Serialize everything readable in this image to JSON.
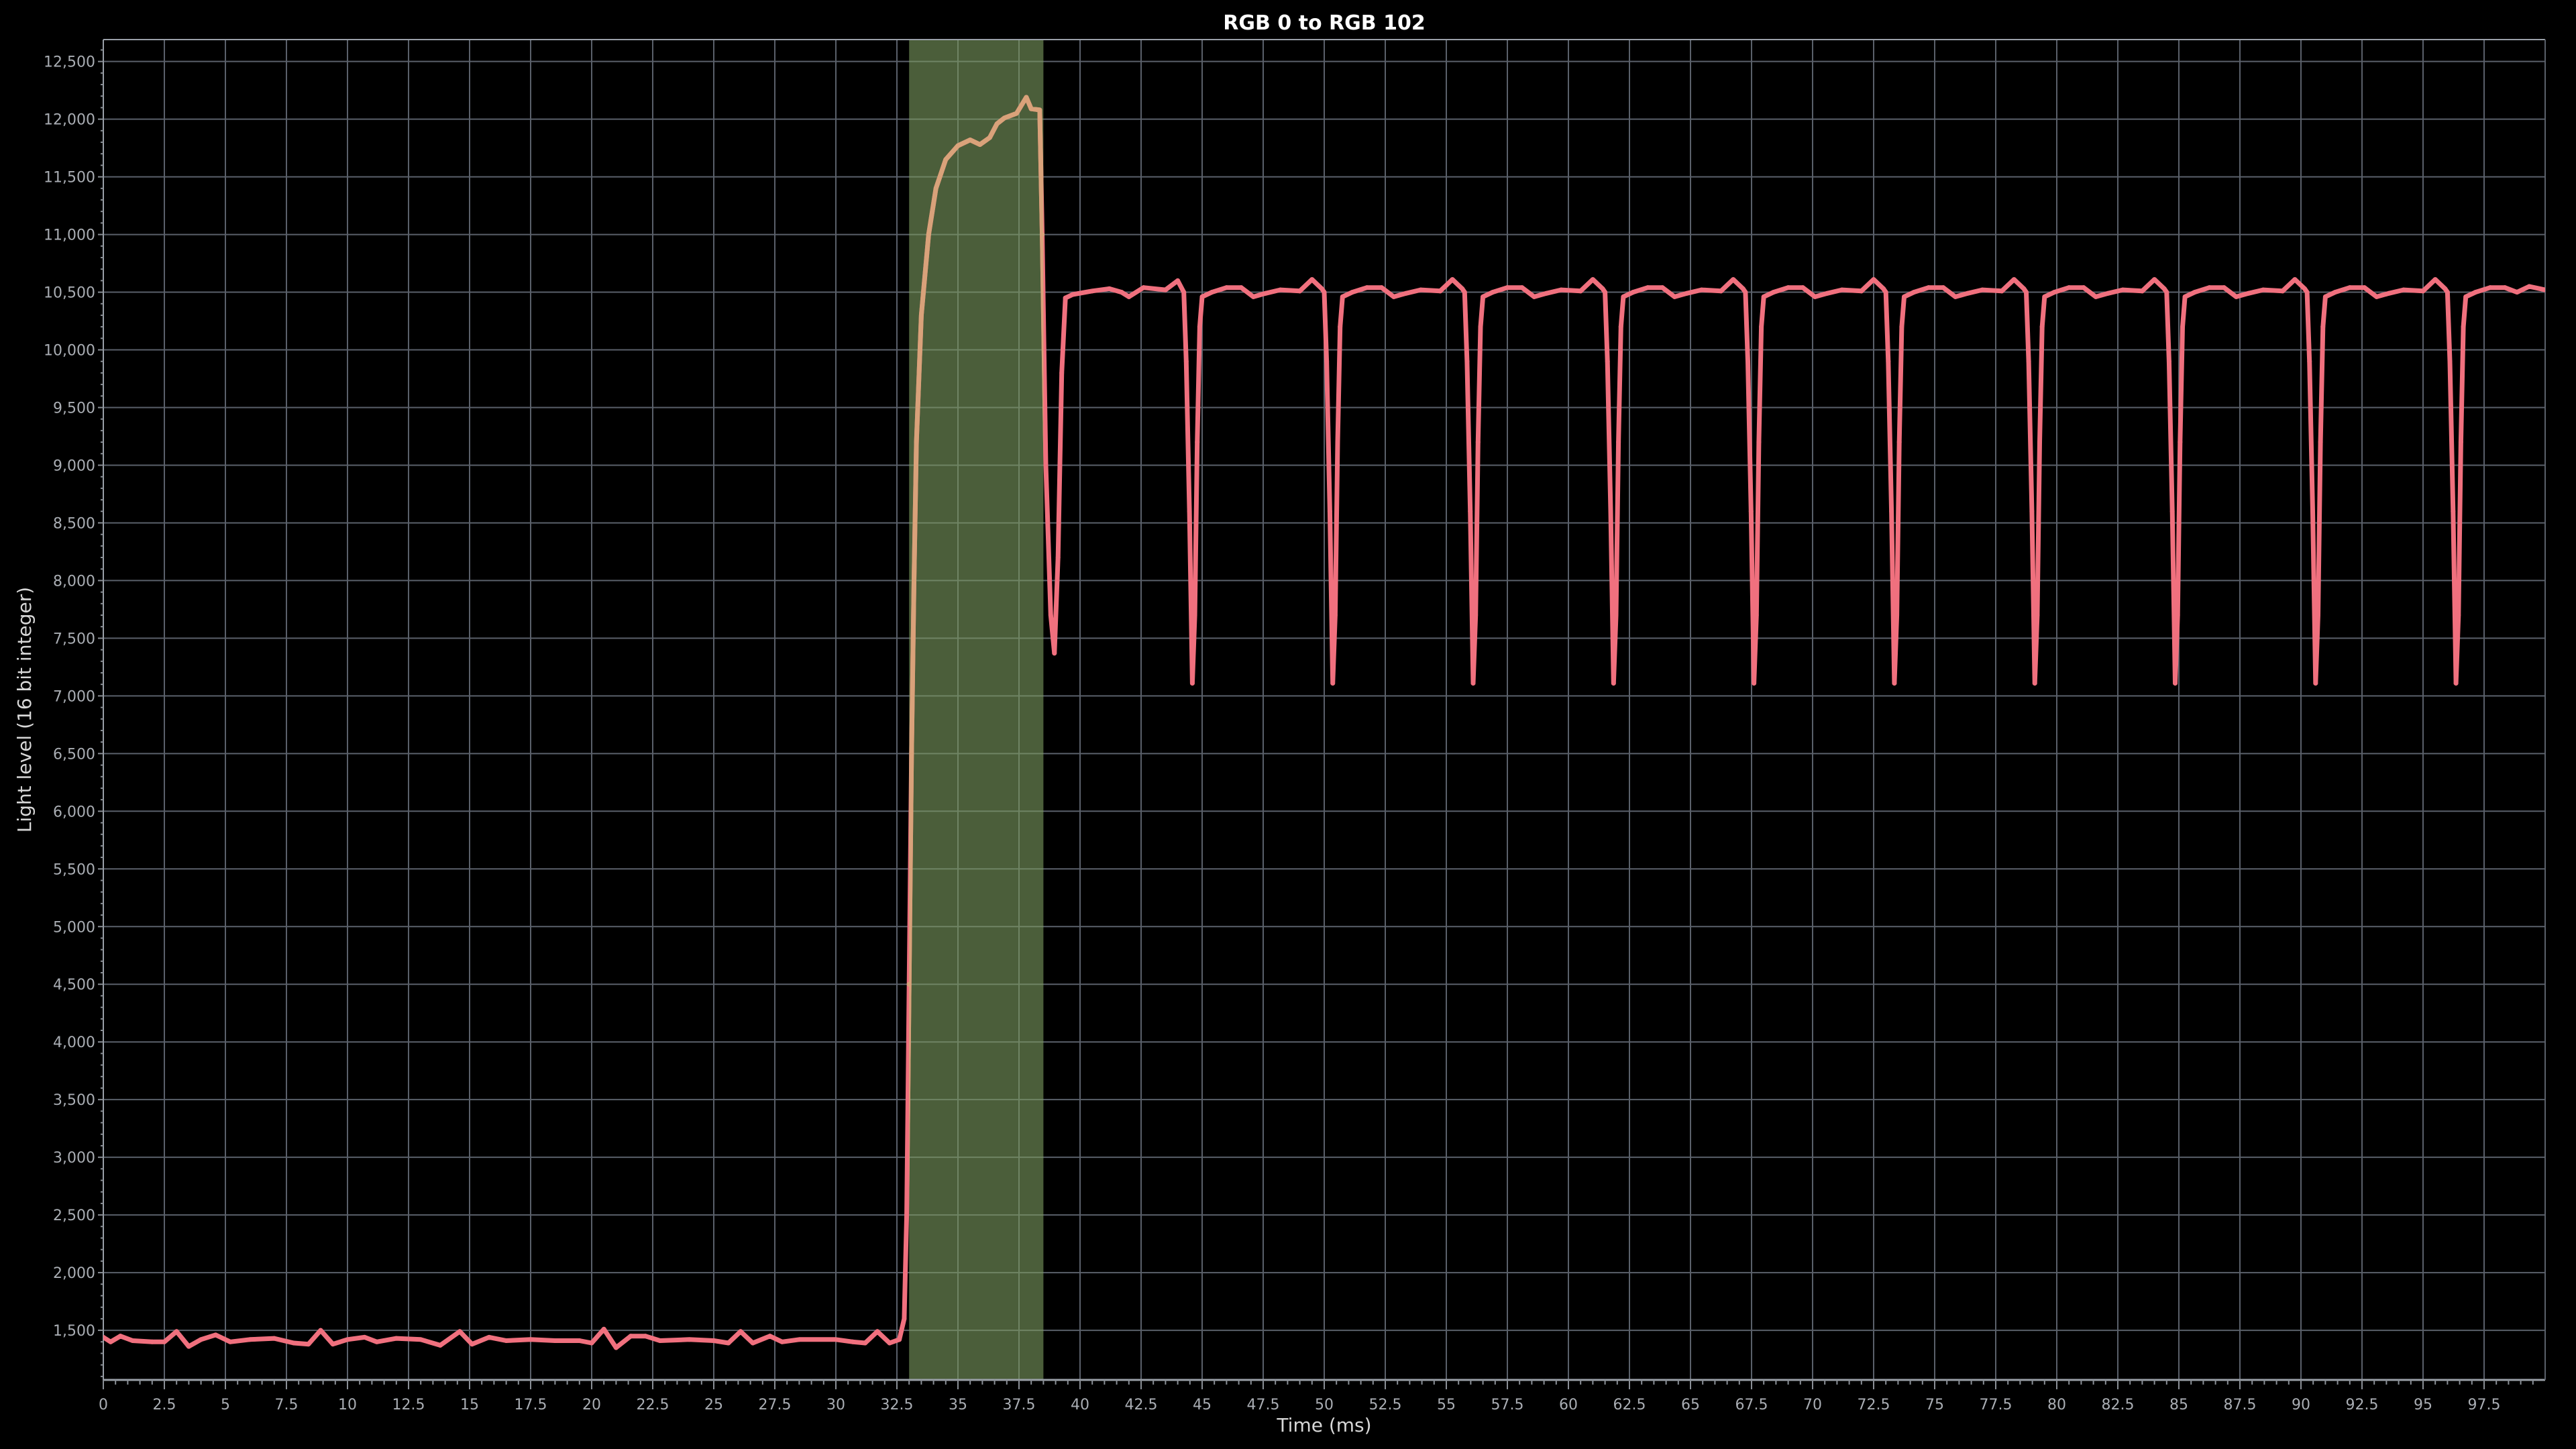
{
  "chart_data": {
    "type": "line",
    "title": "RGB 0 to RGB 102",
    "xlabel": "Time (ms)",
    "ylabel": "Light level (16 bit integer)",
    "xlim": [
      0,
      100
    ],
    "ylim": [
      1070,
      12690
    ],
    "grid": true,
    "x_ticks": [
      0,
      2.5,
      5,
      7.5,
      10,
      12.5,
      15,
      17.5,
      20,
      22.5,
      25,
      27.5,
      30,
      32.5,
      35,
      37.5,
      40,
      42.5,
      45,
      47.5,
      50,
      52.5,
      55,
      57.5,
      60,
      62.5,
      65,
      67.5,
      70,
      72.5,
      75,
      77.5,
      80,
      82.5,
      85,
      87.5,
      90,
      92.5,
      95,
      97.5
    ],
    "x_tick_labels": [
      "0",
      "2.5",
      "5",
      "7.5",
      "10",
      "12.5",
      "15",
      "17.5",
      "20",
      "22.5",
      "25",
      "27.5",
      "30",
      "32.5",
      "35",
      "37.5",
      "40",
      "42.5",
      "45",
      "47.5",
      "50",
      "52.5",
      "55",
      "57.5",
      "60",
      "62.5",
      "65",
      "67.5",
      "70",
      "72.5",
      "75",
      "77.5",
      "80",
      "82.5",
      "85",
      "87.5",
      "90",
      "92.5",
      "95",
      "97.5"
    ],
    "y_ticks": [
      1500,
      2000,
      2500,
      3000,
      3500,
      4000,
      4500,
      5000,
      5500,
      6000,
      6500,
      7000,
      7500,
      8000,
      8500,
      9000,
      9500,
      10000,
      10500,
      11000,
      11500,
      12000,
      12500
    ],
    "y_tick_labels": [
      "1,500",
      "2,000",
      "2,500",
      "3,000",
      "3,500",
      "4,000",
      "4,500",
      "5,000",
      "5,500",
      "6,000",
      "6,500",
      "7,000",
      "7,500",
      "8,000",
      "8,500",
      "9,000",
      "9,500",
      "10,000",
      "10,500",
      "11,000",
      "11,500",
      "12,000",
      "12,500"
    ],
    "highlight_range": [
      33.0,
      38.5
    ],
    "colors": {
      "line": "#f0707e",
      "line_in_highlight": "#d9a27a",
      "highlight": "#4b5e3a",
      "grid": "#5a606a",
      "background": "#000000"
    },
    "series": [
      {
        "points": [
          [
            0,
            1440
          ],
          [
            0.3,
            1400
          ],
          [
            0.7,
            1450
          ],
          [
            1.2,
            1410
          ],
          [
            2,
            1400
          ],
          [
            2.5,
            1400
          ],
          [
            3.0,
            1490
          ],
          [
            3.5,
            1360
          ],
          [
            4.0,
            1420
          ],
          [
            4.6,
            1460
          ],
          [
            5.2,
            1400
          ],
          [
            6,
            1420
          ],
          [
            7,
            1430
          ],
          [
            7.8,
            1390
          ],
          [
            8.4,
            1380
          ],
          [
            8.9,
            1500
          ],
          [
            9.4,
            1380
          ],
          [
            10,
            1420
          ],
          [
            10.7,
            1440
          ],
          [
            11.2,
            1400
          ],
          [
            12,
            1430
          ],
          [
            13,
            1420
          ],
          [
            13.8,
            1370
          ],
          [
            14.6,
            1490
          ],
          [
            15.1,
            1380
          ],
          [
            15.8,
            1440
          ],
          [
            16.5,
            1410
          ],
          [
            17.5,
            1420
          ],
          [
            18.5,
            1410
          ],
          [
            19.5,
            1410
          ],
          [
            20.0,
            1390
          ],
          [
            20.5,
            1510
          ],
          [
            21.0,
            1350
          ],
          [
            21.6,
            1450
          ],
          [
            22.2,
            1450
          ],
          [
            22.8,
            1410
          ],
          [
            24,
            1420
          ],
          [
            25,
            1410
          ],
          [
            25.6,
            1390
          ],
          [
            26.1,
            1490
          ],
          [
            26.6,
            1390
          ],
          [
            27.3,
            1450
          ],
          [
            27.8,
            1400
          ],
          [
            28.5,
            1420
          ],
          [
            30,
            1420
          ],
          [
            30.7,
            1400
          ],
          [
            31.2,
            1390
          ],
          [
            31.7,
            1490
          ],
          [
            32.2,
            1390
          ],
          [
            32.6,
            1420
          ],
          [
            32.8,
            1600
          ],
          [
            32.9,
            2500
          ],
          [
            33.0,
            4500
          ],
          [
            33.1,
            6500
          ],
          [
            33.2,
            8000
          ],
          [
            33.3,
            9200
          ],
          [
            33.5,
            10300
          ],
          [
            33.8,
            11000
          ],
          [
            34.1,
            11400
          ],
          [
            34.5,
            11650
          ],
          [
            35,
            11770
          ],
          [
            35.5,
            11820
          ],
          [
            35.9,
            11780
          ],
          [
            36.3,
            11840
          ],
          [
            36.6,
            11960
          ],
          [
            36.9,
            12010
          ],
          [
            37.4,
            12050
          ],
          [
            37.8,
            12190
          ],
          [
            38.0,
            12090
          ],
          [
            38.35,
            12080
          ],
          [
            38.45,
            11000
          ],
          [
            38.6,
            9000
          ],
          [
            38.8,
            7700
          ],
          [
            38.95,
            7370
          ],
          [
            39.1,
            8200
          ],
          [
            39.25,
            9800
          ],
          [
            39.4,
            10450
          ],
          [
            39.7,
            10480
          ],
          [
            40.5,
            10510
          ],
          [
            41.2,
            10530
          ],
          [
            41.7,
            10500
          ],
          [
            42.0,
            10460
          ],
          [
            42.6,
            10540
          ],
          [
            43.5,
            10520
          ],
          [
            44.0,
            10600
          ],
          [
            44.25,
            10500
          ],
          [
            44.35,
            9900
          ],
          [
            44.48,
            8600
          ],
          [
            44.6,
            7110
          ],
          [
            44.7,
            7700
          ],
          [
            44.8,
            9200
          ],
          [
            44.9,
            10200
          ],
          [
            45.0,
            10460
          ],
          [
            45.4,
            10500
          ],
          [
            46.0,
            10540
          ],
          [
            46.6,
            10540
          ],
          [
            47.1,
            10460
          ],
          [
            47.6,
            10490
          ],
          [
            48.2,
            10520
          ],
          [
            49.0,
            10510
          ],
          [
            49.5,
            10610
          ],
          [
            49.9,
            10530
          ],
          [
            50.0,
            10500
          ],
          [
            50.1,
            9900
          ],
          [
            50.23,
            8600
          ],
          [
            50.35,
            7110
          ],
          [
            50.45,
            7700
          ],
          [
            50.55,
            9200
          ],
          [
            50.65,
            10200
          ],
          [
            50.75,
            10460
          ],
          [
            51.15,
            10500
          ],
          [
            51.75,
            10540
          ],
          [
            52.35,
            10540
          ],
          [
            52.85,
            10460
          ],
          [
            53.35,
            10490
          ],
          [
            53.95,
            10520
          ],
          [
            54.75,
            10510
          ],
          [
            55.25,
            10610
          ],
          [
            55.65,
            10530
          ],
          [
            55.75,
            10500
          ],
          [
            55.85,
            9900
          ],
          [
            55.98,
            8600
          ],
          [
            56.1,
            7110
          ],
          [
            56.2,
            7700
          ],
          [
            56.3,
            9200
          ],
          [
            56.4,
            10200
          ],
          [
            56.5,
            10460
          ],
          [
            56.9,
            10500
          ],
          [
            57.5,
            10540
          ],
          [
            58.1,
            10540
          ],
          [
            58.6,
            10460
          ],
          [
            59.1,
            10490
          ],
          [
            59.7,
            10520
          ],
          [
            60.5,
            10510
          ],
          [
            61.0,
            10610
          ],
          [
            61.4,
            10530
          ],
          [
            61.5,
            10500
          ],
          [
            61.6,
            9900
          ],
          [
            61.73,
            8600
          ],
          [
            61.85,
            7110
          ],
          [
            61.95,
            7700
          ],
          [
            62.05,
            9200
          ],
          [
            62.15,
            10200
          ],
          [
            62.25,
            10460
          ],
          [
            62.65,
            10500
          ],
          [
            63.25,
            10540
          ],
          [
            63.85,
            10540
          ],
          [
            64.35,
            10460
          ],
          [
            64.85,
            10490
          ],
          [
            65.45,
            10520
          ],
          [
            66.25,
            10510
          ],
          [
            66.75,
            10610
          ],
          [
            67.15,
            10530
          ],
          [
            67.25,
            10500
          ],
          [
            67.35,
            9900
          ],
          [
            67.48,
            8600
          ],
          [
            67.6,
            7110
          ],
          [
            67.7,
            7700
          ],
          [
            67.8,
            9200
          ],
          [
            67.9,
            10200
          ],
          [
            68.0,
            10460
          ],
          [
            68.4,
            10500
          ],
          [
            69.0,
            10540
          ],
          [
            69.6,
            10540
          ],
          [
            70.1,
            10460
          ],
          [
            70.6,
            10490
          ],
          [
            71.2,
            10520
          ],
          [
            72.0,
            10510
          ],
          [
            72.5,
            10610
          ],
          [
            72.9,
            10530
          ],
          [
            73.0,
            10500
          ],
          [
            73.1,
            9900
          ],
          [
            73.23,
            8600
          ],
          [
            73.35,
            7110
          ],
          [
            73.45,
            7700
          ],
          [
            73.55,
            9200
          ],
          [
            73.65,
            10200
          ],
          [
            73.75,
            10460
          ],
          [
            74.15,
            10500
          ],
          [
            74.75,
            10540
          ],
          [
            75.35,
            10540
          ],
          [
            75.85,
            10460
          ],
          [
            76.35,
            10490
          ],
          [
            76.95,
            10520
          ],
          [
            77.75,
            10510
          ],
          [
            78.25,
            10610
          ],
          [
            78.65,
            10530
          ],
          [
            78.75,
            10500
          ],
          [
            78.85,
            9900
          ],
          [
            78.98,
            8600
          ],
          [
            79.1,
            7110
          ],
          [
            79.2,
            7700
          ],
          [
            79.3,
            9200
          ],
          [
            79.4,
            10200
          ],
          [
            79.5,
            10460
          ],
          [
            79.9,
            10500
          ],
          [
            80.5,
            10540
          ],
          [
            81.1,
            10540
          ],
          [
            81.6,
            10460
          ],
          [
            82.1,
            10490
          ],
          [
            82.7,
            10520
          ],
          [
            83.5,
            10510
          ],
          [
            84.0,
            10610
          ],
          [
            84.4,
            10530
          ],
          [
            84.5,
            10500
          ],
          [
            84.6,
            9900
          ],
          [
            84.73,
            8600
          ],
          [
            84.85,
            7110
          ],
          [
            84.95,
            7700
          ],
          [
            85.05,
            9200
          ],
          [
            85.15,
            10200
          ],
          [
            85.25,
            10460
          ],
          [
            85.65,
            10500
          ],
          [
            86.25,
            10540
          ],
          [
            86.85,
            10540
          ],
          [
            87.35,
            10460
          ],
          [
            87.85,
            10490
          ],
          [
            88.45,
            10520
          ],
          [
            89.25,
            10510
          ],
          [
            89.75,
            10610
          ],
          [
            90.15,
            10530
          ],
          [
            90.25,
            10500
          ],
          [
            90.35,
            9900
          ],
          [
            90.48,
            8600
          ],
          [
            90.6,
            7110
          ],
          [
            90.7,
            7700
          ],
          [
            90.8,
            9200
          ],
          [
            90.9,
            10200
          ],
          [
            91.0,
            10460
          ],
          [
            91.4,
            10500
          ],
          [
            92.0,
            10540
          ],
          [
            92.6,
            10540
          ],
          [
            93.1,
            10460
          ],
          [
            93.6,
            10490
          ],
          [
            94.2,
            10520
          ],
          [
            95.0,
            10510
          ],
          [
            95.5,
            10610
          ],
          [
            95.9,
            10530
          ],
          [
            96.0,
            10500
          ],
          [
            96.1,
            9900
          ],
          [
            96.23,
            8600
          ],
          [
            96.35,
            7110
          ],
          [
            96.45,
            7700
          ],
          [
            96.55,
            9200
          ],
          [
            96.65,
            10200
          ],
          [
            96.75,
            10460
          ],
          [
            97.15,
            10500
          ],
          [
            97.75,
            10540
          ],
          [
            98.35,
            10540
          ],
          [
            98.85,
            10500
          ],
          [
            99.35,
            10550
          ],
          [
            100,
            10520
          ]
        ]
      }
    ]
  }
}
